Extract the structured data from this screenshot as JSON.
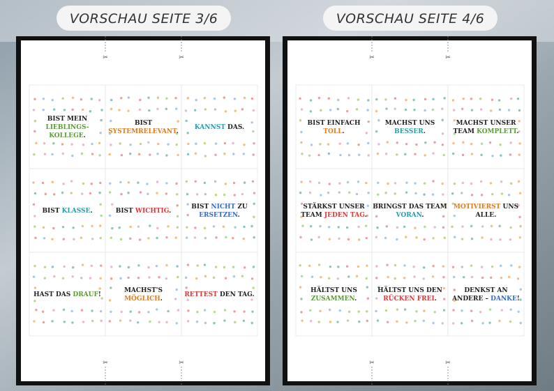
{
  "pages": [
    {
      "label": "VORSCHAU SEITE 3/6",
      "cards": [
        {
          "lines": [
            [
              {
                "text": "BIST MEIN",
                "color": "#222222"
              }
            ],
            [
              {
                "text": "LIEBLINGS-",
                "color": "#5a9a3a"
              }
            ],
            [
              {
                "text": "KOLLEGE",
                "color": "#5a9a3a"
              },
              {
                "text": ".",
                "color": "#222222"
              }
            ]
          ]
        },
        {
          "lines": [
            [
              {
                "text": "BIST",
                "color": "#222222"
              }
            ],
            [
              {
                "text": "SYSTEMRELEVANT",
                "color": "#e07b20"
              },
              {
                "text": ".",
                "color": "#222222"
              }
            ]
          ]
        },
        {
          "lines": [
            [
              {
                "text": "KANNST",
                "color": "#2a9aa8"
              },
              {
                "text": " DAS.",
                "color": "#222222"
              }
            ]
          ]
        },
        {
          "lines": [
            [
              {
                "text": "BIST ",
                "color": "#222222"
              },
              {
                "text": "KLASSE",
                "color": "#2a9aa8"
              },
              {
                "text": ".",
                "color": "#222222"
              }
            ]
          ]
        },
        {
          "lines": [
            [
              {
                "text": "BIST ",
                "color": "#222222"
              },
              {
                "text": "WICHTIG",
                "color": "#d83a3a"
              },
              {
                "text": ".",
                "color": "#222222"
              }
            ]
          ]
        },
        {
          "lines": [
            [
              {
                "text": "BIST ",
                "color": "#222222"
              },
              {
                "text": "NICHT",
                "color": "#3a6ac8"
              },
              {
                "text": " ZU",
                "color": "#222222"
              }
            ],
            [
              {
                "text": "ERSETZEN",
                "color": "#3a6ac8"
              },
              {
                "text": ".",
                "color": "#222222"
              }
            ]
          ]
        },
        {
          "lines": [
            [
              {
                "text": "HAST DAS ",
                "color": "#222222"
              },
              {
                "text": "DRAUF",
                "color": "#5a9a3a"
              },
              {
                "text": "!",
                "color": "#222222"
              }
            ]
          ]
        },
        {
          "lines": [
            [
              {
                "text": "MACHST'S",
                "color": "#222222"
              }
            ],
            [
              {
                "text": "MÖGLICH",
                "color": "#e07b20"
              },
              {
                "text": ".",
                "color": "#222222"
              }
            ]
          ]
        },
        {
          "lines": [
            [
              {
                "text": "RETTEST",
                "color": "#d83a3a"
              },
              {
                "text": " DEN TAG.",
                "color": "#222222"
              }
            ]
          ]
        }
      ]
    },
    {
      "label": "VORSCHAU SEITE 4/6",
      "cards": [
        {
          "lines": [
            [
              {
                "text": "BIST EINFACH",
                "color": "#222222"
              }
            ],
            [
              {
                "text": "TOLL",
                "color": "#e07b20"
              },
              {
                "text": ".",
                "color": "#222222"
              }
            ]
          ]
        },
        {
          "lines": [
            [
              {
                "text": "MACHST UNS",
                "color": "#222222"
              }
            ],
            [
              {
                "text": "BESSER",
                "color": "#2a9aa8"
              },
              {
                "text": ".",
                "color": "#222222"
              }
            ]
          ]
        },
        {
          "lines": [
            [
              {
                "text": "MACHST UNSER",
                "color": "#222222"
              }
            ],
            [
              {
                "text": "TEAM ",
                "color": "#222222"
              },
              {
                "text": "KOMPLETT",
                "color": "#5a9a3a"
              },
              {
                "text": ".",
                "color": "#222222"
              }
            ]
          ]
        },
        {
          "lines": [
            [
              {
                "text": "STÄRKST UNSER",
                "color": "#222222"
              }
            ],
            [
              {
                "text": "TEAM ",
                "color": "#222222"
              },
              {
                "text": "JEDEN TAG",
                "color": "#d83a3a"
              },
              {
                "text": ".",
                "color": "#222222"
              }
            ]
          ]
        },
        {
          "lines": [
            [
              {
                "text": "BRINGST DAS TEAM",
                "color": "#222222"
              }
            ],
            [
              {
                "text": "VORAN",
                "color": "#2a9aa8"
              },
              {
                "text": ".",
                "color": "#222222"
              }
            ]
          ]
        },
        {
          "lines": [
            [
              {
                "text": "MOTIVIERST",
                "color": "#e07b20"
              },
              {
                "text": " UNS",
                "color": "#222222"
              }
            ],
            [
              {
                "text": "ALLE.",
                "color": "#222222"
              }
            ]
          ]
        },
        {
          "lines": [
            [
              {
                "text": "HÄLTST UNS",
                "color": "#222222"
              }
            ],
            [
              {
                "text": "ZUSAMMEN",
                "color": "#5a9a3a"
              },
              {
                "text": ".",
                "color": "#222222"
              }
            ]
          ]
        },
        {
          "lines": [
            [
              {
                "text": "HÄLTST UNS DEN",
                "color": "#222222"
              }
            ],
            [
              {
                "text": "RÜCKEN FREI",
                "color": "#d83a3a"
              },
              {
                "text": ".",
                "color": "#222222"
              }
            ]
          ]
        },
        {
          "lines": [
            [
              {
                "text": "DENKST AN",
                "color": "#222222"
              }
            ],
            [
              {
                "text": "ANDERE – ",
                "color": "#222222"
              },
              {
                "text": "DANKE",
                "color": "#3a6ac8"
              },
              {
                "text": "!",
                "color": "#222222"
              }
            ]
          ]
        }
      ]
    }
  ]
}
